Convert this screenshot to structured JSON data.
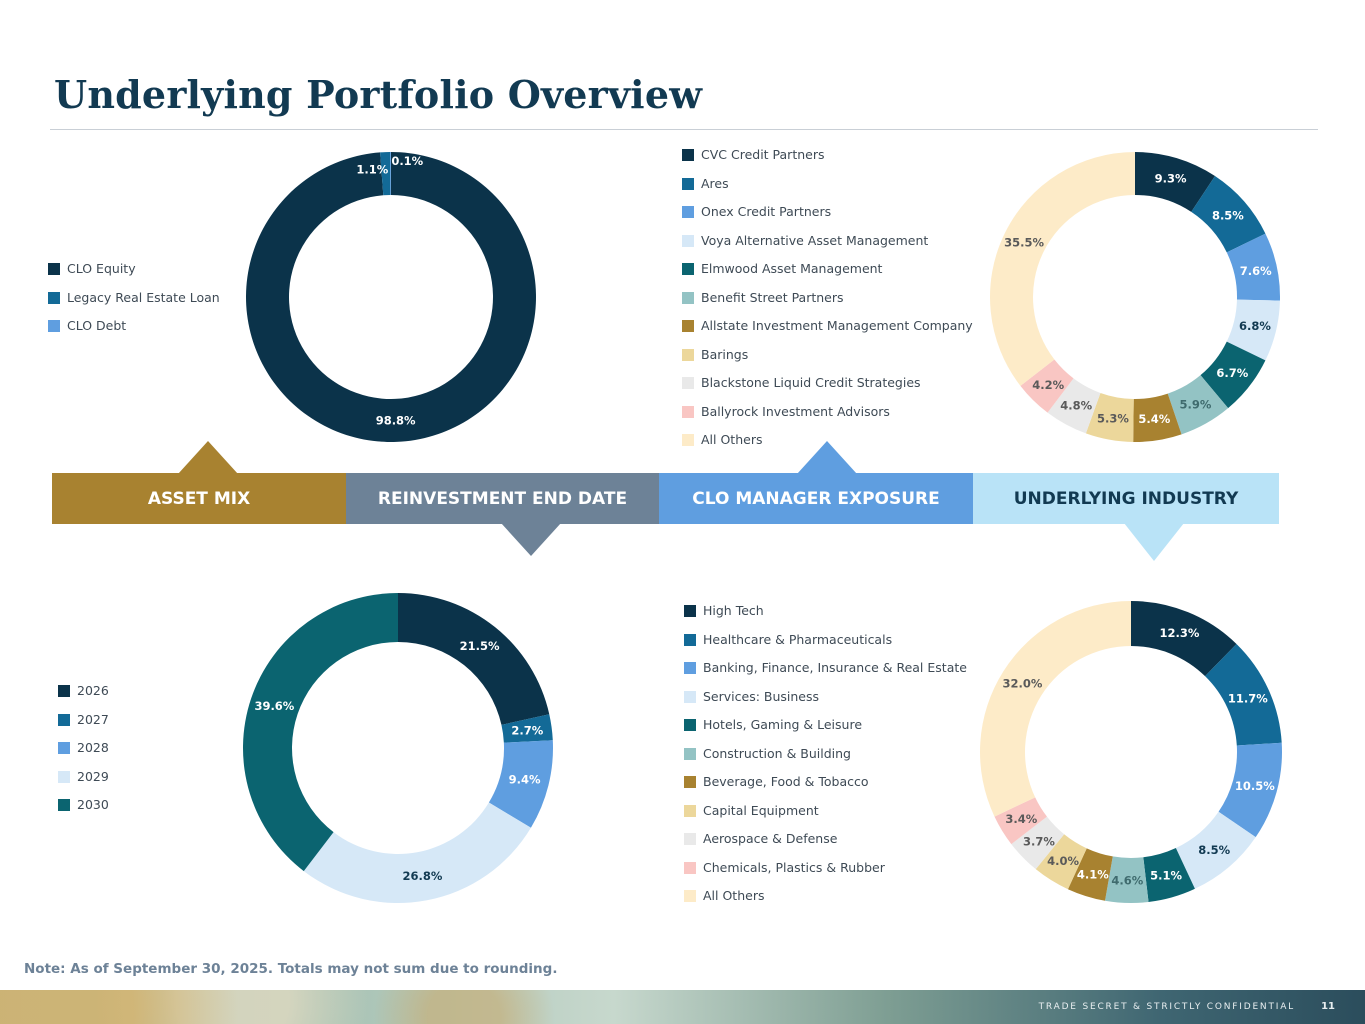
{
  "header": {
    "title": "Underlying Portfolio Overview"
  },
  "bands": {
    "asset_mix": "ASSET MIX",
    "reinvestment": "REINVESTMENT END DATE",
    "manager": "CLO MANAGER EXPOSURE",
    "industry": "UNDERLYING INDUSTRY"
  },
  "footer": {
    "note": "Note: As of September 30, 2025. Totals may not sum due to rounding.",
    "confidential": "TRADE SECRET & STRICTLY CONFIDENTIAL",
    "page": "11"
  },
  "chart_data": [
    {
      "id": "asset_mix",
      "type": "pie",
      "title": "ASSET MIX",
      "categories": [
        "CLO Equity",
        "Legacy Real Estate Loan",
        "CLO Debt"
      ],
      "values": [
        98.8,
        1.1,
        0.1
      ],
      "colors": [
        "#0b334a",
        "#136a97",
        "#5f9ee0"
      ],
      "labels": [
        "98.8%",
        "1.1%",
        "0.1%"
      ],
      "label_colors": [
        "#ffffff",
        "#ffffff",
        "#ffffff"
      ]
    },
    {
      "id": "reinvestment",
      "type": "pie",
      "title": "REINVESTMENT END DATE",
      "categories": [
        "2026",
        "2027",
        "2028",
        "2029",
        "2030"
      ],
      "values": [
        21.5,
        2.7,
        9.4,
        26.8,
        39.6
      ],
      "colors": [
        "#0b334a",
        "#136a97",
        "#5f9ee0",
        "#d6e8f7",
        "#0b6470"
      ],
      "labels": [
        "21.5%",
        "2.7%",
        "9.4%",
        "26.8%",
        "39.6%"
      ],
      "label_colors": [
        "#ffffff",
        "#ffffff",
        "#ffffff",
        "#123a52",
        "#ffffff"
      ]
    },
    {
      "id": "manager",
      "type": "pie",
      "title": "CLO MANAGER EXPOSURE",
      "categories": [
        "CVC Credit Partners",
        "Ares",
        "Onex Credit Partners",
        "Voya Alternative Asset Management",
        "Elmwood Asset Management",
        "Benefit Street Partners",
        "Allstate Investment Management Company",
        "Barings",
        "Blackstone Liquid Credit Strategies",
        "Ballyrock Investment Advisors",
        "All Others"
      ],
      "values": [
        9.3,
        8.5,
        7.6,
        6.8,
        6.7,
        5.9,
        5.4,
        5.3,
        4.8,
        4.2,
        35.5
      ],
      "colors": [
        "#0b334a",
        "#136a97",
        "#5f9ee0",
        "#d6e8f7",
        "#0b6470",
        "#93c3c4",
        "#a88230",
        "#ecd79b",
        "#e9e9e9",
        "#f9c6c3",
        "#fdebc8"
      ],
      "labels": [
        "9.3%",
        "8.5%",
        "7.6%",
        "6.8%",
        "6.7%",
        "5.9%",
        "5.4%",
        "5.3%",
        "4.8%",
        "4.2%",
        "35.5%"
      ],
      "label_colors": [
        "#ffffff",
        "#ffffff",
        "#ffffff",
        "#123a52",
        "#ffffff",
        "#3f6b6e",
        "#ffffff",
        "#5a5a5a",
        "#5a5a5a",
        "#5a5a5a",
        "#5a5a5a"
      ]
    },
    {
      "id": "industry",
      "type": "pie",
      "title": "UNDERLYING INDUSTRY",
      "categories": [
        "High Tech",
        "Healthcare & Pharmaceuticals",
        "Banking, Finance, Insurance & Real Estate",
        "Services: Business",
        "Hotels, Gaming & Leisure",
        "Construction & Building",
        "Beverage, Food & Tobacco",
        "Capital Equipment",
        "Aerospace & Defense",
        "Chemicals, Plastics & Rubber",
        "All Others"
      ],
      "values": [
        12.3,
        11.7,
        10.5,
        8.5,
        5.1,
        4.6,
        4.1,
        4.0,
        3.7,
        3.4,
        32.0
      ],
      "colors": [
        "#0b334a",
        "#136a97",
        "#5f9ee0",
        "#d6e8f7",
        "#0b6470",
        "#93c3c4",
        "#a88230",
        "#ecd79b",
        "#e9e9e9",
        "#f9c6c3",
        "#fdebc8"
      ],
      "labels": [
        "12.3%",
        "11.7%",
        "10.5%",
        "8.5%",
        "5.1%",
        "4.6%",
        "4.1%",
        "4.0%",
        "3.7%",
        "3.4%",
        "32.0%"
      ],
      "label_colors": [
        "#ffffff",
        "#ffffff",
        "#ffffff",
        "#123a52",
        "#ffffff",
        "#3f6b6e",
        "#ffffff",
        "#5a5a5a",
        "#5a5a5a",
        "#5a5a5a",
        "#5a5a5a"
      ]
    }
  ]
}
